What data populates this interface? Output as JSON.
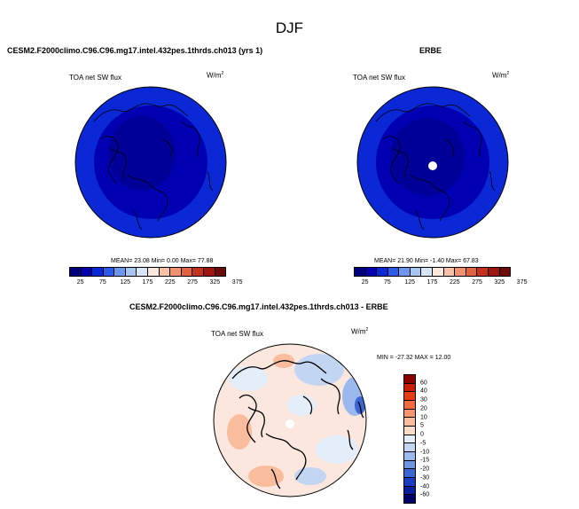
{
  "page": {
    "title": "DJF"
  },
  "panels": {
    "model": {
      "title": "CESM2.F2000climo.C96.C96.mg17.intel.432pes.1thrds.ch013 (yrs 1)",
      "variable": "TOA net SW flux",
      "units": "W/m",
      "units_sup": "2",
      "stats": "MEAN= 23.08 Min= 0.00 Max= 77.88"
    },
    "obs": {
      "title": "ERBE",
      "variable": "TOA net SW flux",
      "units": "W/m",
      "units_sup": "2",
      "stats": "MEAN= 21.90 Min= -1.40 Max= 67.83"
    },
    "diff": {
      "title": "CESM2.F2000climo.C96.C96.mg17.intel.432pes.1thrds.ch013 - ERBE",
      "variable": "TOA net SW flux",
      "units": "W/m",
      "units_sup": "2",
      "stats": "MIN = -27.32 MAX = 12.00"
    }
  },
  "abs_colorbar": {
    "labels": [
      "25",
      "75",
      "125",
      "175",
      "225",
      "275",
      "325",
      "375"
    ],
    "colors": [
      "#00007f",
      "#0000b2",
      "#0a28d6",
      "#2d5ae8",
      "#6e96ee",
      "#a8c6f2",
      "#d6e6f8",
      "#fbe7dd",
      "#f7c1a6",
      "#f09270",
      "#e2613f",
      "#c4321e",
      "#9e1410",
      "#6b0a06"
    ]
  },
  "diff_colorbar": {
    "labels": [
      "60",
      "40",
      "30",
      "20",
      "10",
      "5",
      "0",
      "-5",
      "-10",
      "-15",
      "-20",
      "-30",
      "-40",
      "-60"
    ],
    "colors": [
      "#8b0000",
      "#c81e00",
      "#e43c14",
      "#f06a3c",
      "#f69670",
      "#f9bc9c",
      "#fbdcc8",
      "#e3eefa",
      "#c2d6f4",
      "#9bb9ee",
      "#6f94e2",
      "#3a66d3",
      "#1a3cc1",
      "#0a1e9e",
      "#000069"
    ]
  },
  "map_colors": {
    "model_outer": "#0a28d6",
    "model_inner": "#0000b2",
    "model_core": "#00007f",
    "obs_outer": "#0a28d6",
    "obs_inner": "#0000b2",
    "obs_core": "#00007f",
    "diff_bg": "#fbe7dd"
  }
}
